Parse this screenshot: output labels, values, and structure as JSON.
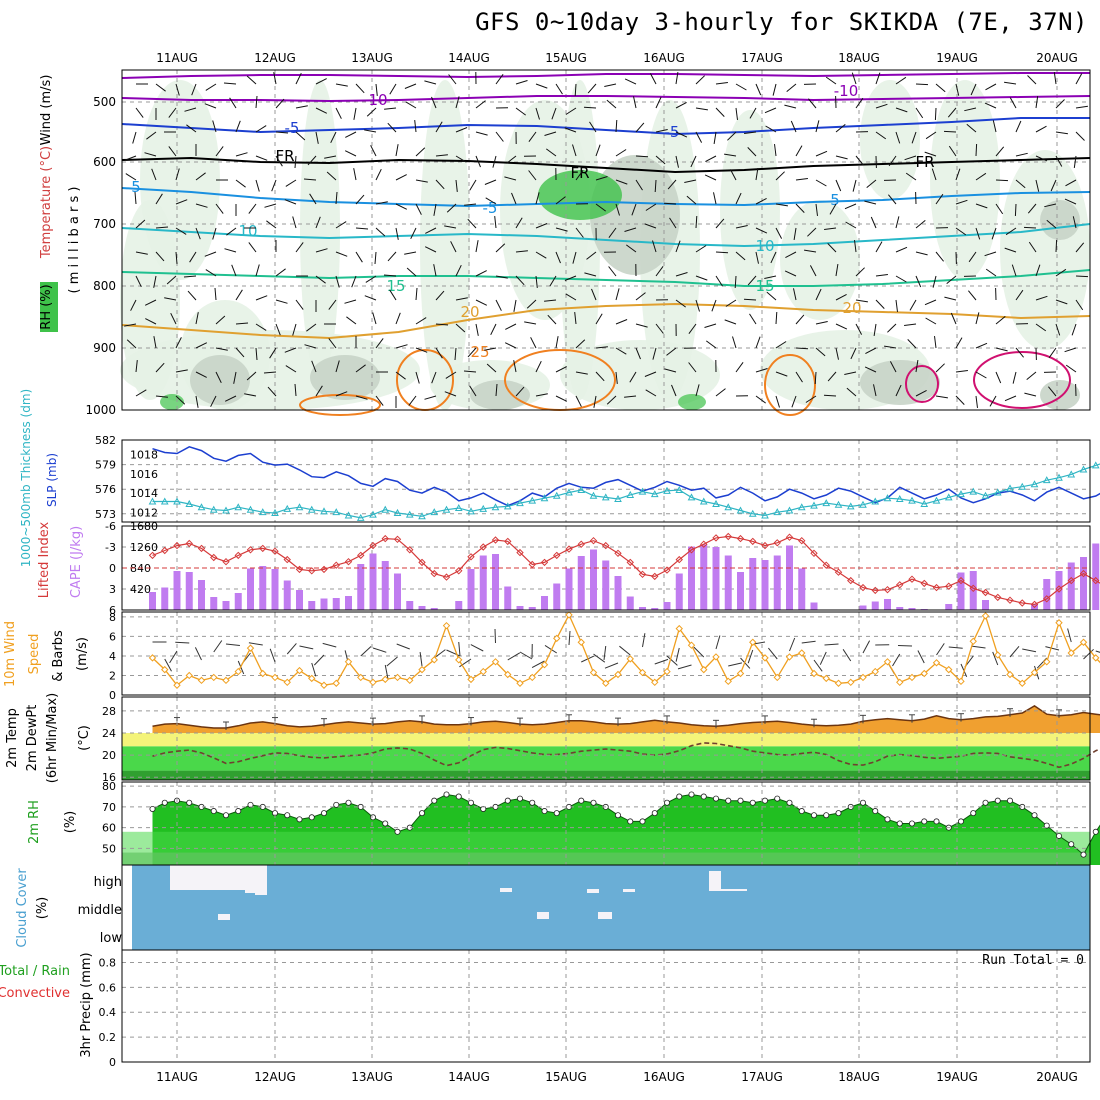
{
  "title": "GFS 0~10day 3-hourly for SKIKDA (7E, 37N)",
  "date_labels": [
    "11AUG",
    "12AUG",
    "13AUG",
    "14AUG",
    "15AUG",
    "16AUG",
    "17AUG",
    "18AUG",
    "19AUG",
    "20AUG"
  ],
  "colors": {
    "grid": "#999999",
    "axis": "#000000",
    "rh_green": "#3fc24a",
    "purple": "#8b00b4",
    "blue_line": "#1c3fd0",
    "cyan_line": "#2fb5c4",
    "cape_bar": "#c07cf0",
    "lifted_line": "#d53a3a",
    "wind_line": "#f0a020",
    "temp_fill": "#f0a030",
    "dew_line": "#704030",
    "rh_fill": "#2fd02f",
    "cloud_bg": "#6aaed6",
    "cloud_patch": "#f5f3f8"
  },
  "panels": {
    "upper": {
      "labels": {
        "wind": "Wind (m/s)",
        "temp": "Temperature (°C)",
        "rh": "RH (%)",
        "millibars": "( m i l l i b a r s )"
      },
      "yticks": [
        "500",
        "600",
        "700",
        "800",
        "900",
        "1000"
      ],
      "contour_labels": [
        "10",
        "-10",
        "-5",
        "-5",
        "FR",
        "FR",
        "FR",
        "5",
        "-5",
        "5",
        "10",
        "10",
        "15",
        "15",
        "20",
        "20",
        "25"
      ]
    },
    "thickness": {
      "label_thick": "1000~500mb Thickness (dm)",
      "label_slp": "SLP (mb)",
      "left_ticks": [
        "582",
        "579",
        "576",
        "573"
      ],
      "right_ticks": [
        "1018",
        "1016",
        "1014",
        "1012"
      ]
    },
    "cape": {
      "label_li": "Lifted Index",
      "label_cape": "CAPE (J/kg)",
      "left_ticks": [
        "-6",
        "-3",
        "0",
        "3",
        "6"
      ],
      "right_ticks": [
        "1680",
        "1260",
        "840",
        "420"
      ]
    },
    "wind10": {
      "label": "10m Wind Speed & Barbs (m/s)",
      "label_a": "10m Wind",
      "label_b": "Speed",
      "label_c": "& Barbs",
      "ticks": [
        "8",
        "6",
        "4",
        "2",
        "0"
      ]
    },
    "temp2m": {
      "label_a": "2m Temp",
      "label_b": "2m DewPt",
      "label_c": "(6hr Min/Max)",
      "unit": "(°C)",
      "ticks": [
        "28",
        "24",
        "20",
        "16"
      ]
    },
    "rh2m": {
      "label": "2m RH",
      "unit": "(%)",
      "ticks": [
        "80",
        "70",
        "60",
        "50"
      ]
    },
    "cloud": {
      "label": "Cloud Cover",
      "unit": "(%)",
      "levels": [
        "high",
        "middle",
        "low"
      ]
    },
    "precip": {
      "label_total": "Total / Rain",
      "label_conv": "Convective",
      "label_precip": "3hr Precip (mm)",
      "ticks": [
        "0.8",
        "0.6",
        "0.4",
        "0.2",
        "0"
      ],
      "run_total": "Run Total = 0"
    }
  },
  "chart_data": [
    {
      "type": "line",
      "title": "1000~500mb Thickness (dm) / SLP (mb)",
      "x_step_hours": 3,
      "series": [
        {
          "name": "SLP (mb)",
          "values": [
            1018.6,
            1018.2,
            1018.1,
            1018.8,
            1018.4,
            1017.6,
            1017.3,
            1017.9,
            1018.1,
            1017.2,
            1016.9,
            1017.0,
            1016.4,
            1015.7,
            1015.6,
            1016.2,
            1015.8,
            1015.0,
            1014.7,
            1015.5,
            1015.2,
            1014.3,
            1014.0,
            1014.6,
            1014.1,
            1013.2,
            1013.5,
            1014.0,
            1013.3,
            1012.7,
            1013.2,
            1014.0,
            1013.6,
            1014.5,
            1015.0,
            1014.6,
            1014.5,
            1015.1,
            1015.4,
            1014.8,
            1014.2,
            1014.6,
            1015.2,
            1014.8,
            1014.3,
            1014.5,
            1013.5,
            1013.8,
            1014.6,
            1014.0,
            1013.2,
            1013.6,
            1014.4,
            1014.0,
            1013.4,
            1013.8,
            1014.5,
            1014.2,
            1013.6,
            1013.0,
            1013.5,
            1014.6,
            1014.0,
            1013.4,
            1013.8,
            1014.4,
            1013.5,
            1013.0,
            1013.4,
            1014.0,
            1014.2,
            1013.8,
            1013.2,
            1014.1,
            1014.6,
            1014.0,
            1013.4,
            1013.7,
            1014.4,
            1013.8,
            1013.3,
            1012.9,
            1012.6,
            1012.4
          ]
        },
        {
          "name": "Thickness (dm)",
          "values": [
            574.5,
            574.5,
            574.5,
            574.2,
            573.8,
            573.5,
            573.4,
            573.8,
            573.5,
            573.2,
            573.1,
            573.6,
            573.8,
            573.5,
            573.3,
            573.2,
            572.8,
            572.5,
            572.9,
            573.5,
            573.1,
            572.9,
            572.7,
            573.2,
            573.5,
            573.7,
            573.3,
            573.6,
            573.8,
            573.9,
            574.3,
            574.6,
            574.9,
            575.2,
            575.6,
            575.9,
            575.2,
            575.0,
            574.8,
            575.3,
            575.7,
            575.4,
            575.8,
            575.9,
            575.0,
            574.5,
            574.2,
            573.8,
            573.4,
            573.0,
            572.8,
            573.2,
            573.4,
            573.8,
            574.0,
            574.3,
            574.1,
            573.9,
            574.1,
            574.5,
            574.9,
            574.8,
            574.6,
            574.2,
            574.6,
            575.0,
            575.4,
            575.7,
            575.2,
            575.6,
            576.1,
            576.3,
            576.6,
            577.1,
            577.4,
            577.8,
            578.4,
            578.9,
            579.4,
            579.8,
            579.3,
            578.9,
            578.7,
            578.8
          ]
        }
      ],
      "ylim_left": [
        572,
        582
      ],
      "ylim_right": [
        1011,
        1019.5
      ]
    },
    {
      "type": "bar",
      "title": "Lifted Index / CAPE (J/kg)",
      "series": [
        {
          "name": "CAPE (J/kg)",
          "values": [
            360,
            450,
            780,
            760,
            600,
            260,
            180,
            340,
            830,
            880,
            820,
            590,
            400,
            180,
            230,
            240,
            280,
            920,
            1130,
            980,
            730,
            180,
            80,
            40,
            10,
            180,
            820,
            1090,
            1120,
            470,
            80,
            60,
            280,
            530,
            830,
            1080,
            1210,
            990,
            680,
            270,
            60,
            40,
            160,
            730,
            1270,
            1310,
            1260,
            1090,
            760,
            1040,
            1000,
            1090,
            1290,
            830,
            150,
            0,
            0,
            0,
            90,
            170,
            220,
            60,
            40,
            20,
            0,
            120,
            750,
            780,
            200,
            0,
            0,
            0,
            120,
            620,
            780,
            950,
            1060,
            1330,
            1180,
            310
          ]
        },
        {
          "name": "Lifted Index",
          "values": [
            -1.8,
            -2.5,
            -3.2,
            -3.5,
            -2.8,
            -1.5,
            -0.9,
            -1.8,
            -2.6,
            -2.8,
            -2.4,
            -1.2,
            0.2,
            0.4,
            0.2,
            -0.4,
            -0.9,
            -1.8,
            -3.2,
            -4.2,
            -4.1,
            -2.6,
            -0.8,
            0.8,
            1.3,
            0.4,
            -1.6,
            -3.0,
            -4.0,
            -3.8,
            -2.2,
            -0.5,
            -0.8,
            -1.8,
            -2.7,
            -3.4,
            -3.9,
            -3.2,
            -2.1,
            -0.8,
            0.9,
            1.2,
            0.3,
            -1.2,
            -2.6,
            -3.4,
            -4.3,
            -4.5,
            -4.2,
            -3.8,
            -3.2,
            -3.6,
            -4.4,
            -3.9,
            -2.1,
            -0.4,
            0.6,
            1.8,
            2.8,
            3.2,
            3.1,
            2.4,
            1.6,
            2.2,
            2.8,
            2.6,
            1.8,
            2.9,
            3.5,
            4.2,
            4.6,
            5.0,
            5.2,
            4.4,
            3.0,
            1.8,
            0.8,
            1.8,
            2.8,
            3.4,
            2.6,
            -1.2,
            -4.4,
            -5.1,
            -3.2,
            0.8
          ]
        }
      ],
      "ylim_left": [
        -6,
        6
      ],
      "ylim_right": [
        0,
        1680
      ]
    },
    {
      "type": "line",
      "title": "10m Wind Speed & Barbs (m/s)",
      "series": [
        {
          "name": "10m Wind Speed",
          "values": [
            3.8,
            2.6,
            1.0,
            2.0,
            1.5,
            1.8,
            1.5,
            2.4,
            4.8,
            2.2,
            1.8,
            1.3,
            2.5,
            1.7,
            1.0,
            1.2,
            3.4,
            1.8,
            1.3,
            1.6,
            1.8,
            1.5,
            2.6,
            3.6,
            7.1,
            3.6,
            1.6,
            2.4,
            3.4,
            2.1,
            1.2,
            1.8,
            3.1,
            5.8,
            8.2,
            5.4,
            2.3,
            1.2,
            2.1,
            3.7,
            2.3,
            1.3,
            2.4,
            6.8,
            5.1,
            2.6,
            3.9,
            1.4,
            2.2,
            5.4,
            3.8,
            1.8,
            3.9,
            4.3,
            2.2,
            1.7,
            1.2,
            1.3,
            1.8,
            2.4,
            3.4,
            1.3,
            1.8,
            2.2,
            3.3,
            2.6,
            1.4,
            5.5,
            8.1,
            4.1,
            2.1,
            1.2,
            2.3,
            3.4,
            7.4,
            4.3,
            5.4,
            3.8,
            2.5,
            1.9,
            4.4,
            1.9,
            1.0,
            3.8
          ]
        }
      ],
      "ylim": [
        0,
        8.5
      ]
    },
    {
      "type": "area",
      "title": "2m Temp / 2m DewPt (6hr Min/Max) (°C)",
      "series": [
        {
          "name": "2m Temp",
          "values": [
            25.2,
            25.6,
            25.7,
            25.4,
            25.1,
            24.9,
            24.9,
            25.3,
            25.8,
            26.0,
            25.7,
            25.3,
            25.1,
            25.2,
            25.5,
            25.8,
            26.0,
            25.8,
            25.6,
            25.7,
            26.0,
            26.2,
            26.0,
            25.6,
            25.5,
            25.5,
            25.7,
            26.0,
            26.1,
            25.9,
            25.6,
            25.5,
            25.6,
            25.9,
            26.2,
            26.2,
            26.0,
            25.7,
            25.6,
            25.7,
            26.0,
            26.3,
            26.0,
            25.8,
            25.5,
            25.3,
            25.2,
            25.4,
            25.7,
            25.9,
            26.0,
            26.1,
            25.9,
            25.6,
            25.4,
            25.3,
            25.4,
            25.6,
            26.1,
            26.4,
            26.6,
            26.4,
            26.2,
            26.5,
            27.1,
            26.6,
            26.4,
            26.6,
            26.9,
            27.0,
            27.3,
            27.6,
            28.9,
            27.4,
            27.1,
            27.3,
            27.7,
            27.4,
            27.1,
            26.7,
            26.5,
            26.4,
            26.4,
            26.5
          ]
        },
        {
          "name": "2m DewPt",
          "values": [
            19.8,
            20.4,
            20.7,
            20.9,
            20.4,
            19.5,
            18.5,
            18.8,
            19.4,
            19.9,
            20.4,
            20.3,
            19.9,
            19.6,
            19.5,
            19.7,
            19.9,
            20.0,
            20.4,
            21.1,
            21.3,
            21.1,
            20.3,
            19.1,
            18.1,
            18.6,
            19.9,
            21.0,
            21.4,
            21.2,
            20.8,
            20.4,
            20.1,
            20.1,
            20.3,
            20.7,
            20.9,
            21.1,
            20.9,
            20.7,
            20.2,
            20.0,
            20.2,
            20.8,
            21.7,
            22.2,
            22.1,
            21.7,
            21.3,
            20.7,
            20.4,
            20.1,
            20.0,
            20.3,
            20.5,
            20.1,
            19.0,
            18.3,
            18.2,
            18.8,
            19.8,
            20.1,
            19.9,
            19.6,
            19.4,
            19.6,
            19.8,
            20.3,
            20.4,
            20.3,
            19.7,
            19.4,
            19.1,
            18.5,
            17.8,
            18.4,
            19.4,
            20.8,
            21.6,
            21.9,
            22.3,
            22.6,
            22.3,
            21.6
          ]
        }
      ],
      "ylim": [
        15.5,
        30.5
      ]
    },
    {
      "type": "area",
      "title": "2m RH (%)",
      "series": [
        {
          "name": "2m RH",
          "values": [
            69,
            72,
            73,
            72,
            70,
            68,
            66,
            68,
            71,
            70,
            67,
            66,
            64,
            65,
            67,
            71,
            72,
            70,
            65,
            62,
            58,
            60,
            67,
            73,
            76,
            75,
            72,
            69,
            70,
            73,
            74,
            72,
            68,
            67,
            70,
            73,
            72,
            70,
            66,
            63,
            63,
            67,
            72,
            75,
            76,
            75,
            74,
            73,
            73,
            72,
            73,
            74,
            72,
            68,
            66,
            66,
            67,
            70,
            72,
            68,
            64,
            62,
            62,
            63,
            63,
            60,
            63,
            67,
            72,
            73,
            73,
            70,
            66,
            61,
            56,
            52,
            47,
            58,
            67,
            69,
            72,
            76,
            79,
            78
          ]
        }
      ],
      "ylim": [
        42,
        82
      ]
    }
  ]
}
